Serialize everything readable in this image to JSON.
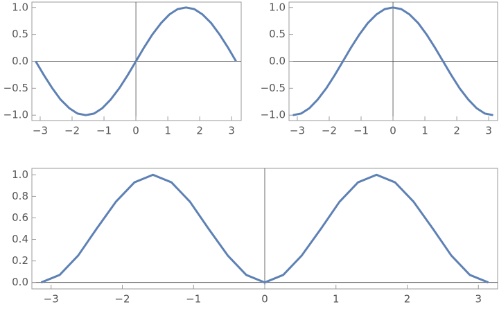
{
  "chart_data": [
    {
      "type": "line",
      "x": [
        -3.14,
        -2.88,
        -2.62,
        -2.36,
        -2.09,
        -1.83,
        -1.57,
        -1.31,
        -1.05,
        -0.79,
        -0.52,
        -0.26,
        0,
        0.26,
        0.52,
        0.79,
        1.05,
        1.31,
        1.57,
        1.83,
        2.09,
        2.36,
        2.62,
        2.88,
        3.14
      ],
      "series": [
        {
          "color": "#5e81b5",
          "values": [
            0,
            -0.26,
            -0.5,
            -0.71,
            -0.87,
            -0.97,
            -1,
            -0.97,
            -0.87,
            -0.71,
            -0.5,
            -0.26,
            0,
            0.26,
            0.5,
            0.71,
            0.87,
            0.97,
            1,
            0.97,
            0.87,
            0.71,
            0.5,
            0.26,
            0
          ]
        }
      ],
      "xlim": [
        -3.26,
        3.3
      ],
      "ylim": [
        -1.1,
        1.1
      ],
      "xticks": [
        {
          "value": -3,
          "label": "−3"
        },
        {
          "value": -2,
          "label": "−2"
        },
        {
          "value": -1,
          "label": "−1"
        },
        0,
        1,
        2,
        3
      ],
      "yticks": [
        {
          "value": 1,
          "label": "1.0"
        },
        0.5,
        {
          "value": 0,
          "label": "0.0"
        },
        {
          "value": -0.5,
          "label": "−0.5"
        },
        {
          "value": -1,
          "label": "−1.0"
        }
      ]
    },
    {
      "type": "line",
      "x": [
        -3.14,
        -2.88,
        -2.62,
        -2.36,
        -2.09,
        -1.83,
        -1.57,
        -1.31,
        -1.05,
        -0.79,
        -0.52,
        -0.26,
        0,
        0.26,
        0.52,
        0.79,
        1.05,
        1.31,
        1.57,
        1.83,
        2.09,
        2.36,
        2.62,
        2.88,
        3.14
      ],
      "series": [
        {
          "color": "#5e81b5",
          "values": [
            -1,
            -0.97,
            -0.87,
            -0.71,
            -0.5,
            -0.26,
            0,
            0.26,
            0.5,
            0.71,
            0.87,
            0.97,
            1,
            0.97,
            0.87,
            0.71,
            0.5,
            0.26,
            0,
            -0.26,
            -0.5,
            -0.71,
            -0.87,
            -0.97,
            -1
          ]
        }
      ],
      "xlim": [
        -3.26,
        3.28
      ],
      "ylim": [
        -1.1,
        1.1
      ],
      "xticks": [
        {
          "value": -3,
          "label": "−3"
        },
        {
          "value": -2,
          "label": "−2"
        },
        {
          "value": -1,
          "label": "−1"
        },
        0,
        1,
        2,
        3
      ],
      "yticks": [
        {
          "value": 1,
          "label": "1.0"
        },
        0.5,
        {
          "value": 0,
          "label": "0.0"
        },
        {
          "value": -0.5,
          "label": "−0.5"
        },
        {
          "value": -1,
          "label": "−1.0"
        }
      ]
    },
    {
      "type": "line",
      "x": [
        -3.14,
        -2.88,
        -2.62,
        -2.36,
        -2.09,
        -1.83,
        -1.57,
        -1.31,
        -1.05,
        -0.79,
        -0.52,
        -0.26,
        0,
        0.26,
        0.52,
        0.79,
        1.05,
        1.31,
        1.57,
        1.83,
        2.09,
        2.36,
        2.62,
        2.88,
        3.14
      ],
      "series": [
        {
          "color": "#5e81b5",
          "values": [
            0,
            0.07,
            0.25,
            0.5,
            0.75,
            0.93,
            1,
            0.93,
            0.75,
            0.5,
            0.25,
            0.07,
            0,
            0.07,
            0.25,
            0.5,
            0.75,
            0.93,
            1,
            0.93,
            0.75,
            0.5,
            0.25,
            0.07,
            0
          ]
        }
      ],
      "xlim": [
        -3.27,
        3.27
      ],
      "ylim": [
        -0.06,
        1.06
      ],
      "xticks": [
        {
          "value": -3,
          "label": "−3"
        },
        {
          "value": -2,
          "label": "−2"
        },
        {
          "value": -1,
          "label": "−1"
        },
        0,
        1,
        2,
        3
      ],
      "yticks": [
        {
          "value": 1,
          "label": "1.0"
        },
        0.8,
        0.6,
        0.4,
        0.2,
        {
          "value": 0,
          "label": "0.0"
        }
      ]
    }
  ]
}
